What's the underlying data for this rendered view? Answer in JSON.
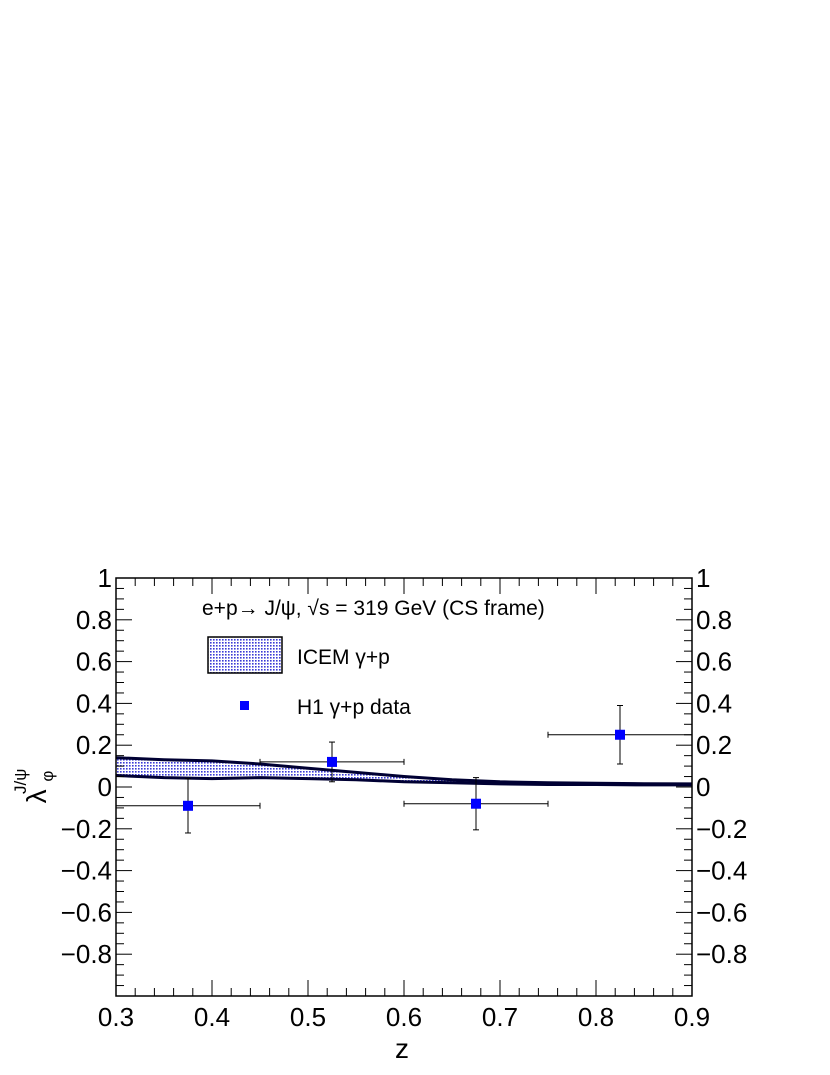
{
  "chart_data": {
    "type": "scatter",
    "title": "e+p→ J/ψ, √s = 319 GeV (CS frame)",
    "xlabel": "z",
    "ylabel_main": "λ",
    "ylabel_sub": "φ",
    "ylabel_sup": "J/ψ",
    "xlim": [
      0.3,
      0.9
    ],
    "ylim": [
      -1,
      1
    ],
    "x_ticks": [
      0.3,
      0.4,
      0.5,
      0.6,
      0.7,
      0.8,
      0.9
    ],
    "x_tick_labels": [
      "0.3",
      "0.4",
      "0.5",
      "0.6",
      "0.7",
      "0.8",
      "0.9"
    ],
    "y_ticks": [
      -0.8,
      -0.6,
      -0.4,
      -0.2,
      0,
      0.2,
      0.4,
      0.6,
      0.8,
      1
    ],
    "y_tick_labels": [
      "−0.8",
      "−0.6",
      "−0.4",
      "−0.2",
      "0",
      "0.2",
      "0.4",
      "0.6",
      "0.8",
      "1"
    ],
    "grid": false,
    "legend": {
      "placement": "top-left",
      "entries": [
        {
          "label": "ICEM γ+p",
          "kind": "band"
        },
        {
          "label": "H1 γ+p data",
          "kind": "marker"
        }
      ]
    },
    "series": [
      {
        "name": "ICEM γ+p",
        "kind": "band",
        "color": "#3b3bd6",
        "x": [
          0.3,
          0.35,
          0.4,
          0.45,
          0.5,
          0.55,
          0.6,
          0.65,
          0.7,
          0.75,
          0.8,
          0.85,
          0.9
        ],
        "upper": [
          0.14,
          0.13,
          0.125,
          0.11,
          0.09,
          0.07,
          0.05,
          0.035,
          0.025,
          0.02,
          0.018,
          0.016,
          0.015
        ],
        "lower": [
          0.055,
          0.045,
          0.04,
          0.045,
          0.04,
          0.035,
          0.025,
          0.02,
          0.015,
          0.012,
          0.012,
          0.01,
          0.01
        ]
      },
      {
        "name": "H1 γ+p data",
        "kind": "points",
        "color": "#0000ff",
        "points": [
          {
            "x": 0.375,
            "y": -0.09,
            "x_low": 0.3,
            "x_high": 0.45,
            "y_err": 0.13
          },
          {
            "x": 0.525,
            "y": 0.12,
            "x_low": 0.45,
            "x_high": 0.6,
            "y_err": 0.095
          },
          {
            "x": 0.675,
            "y": -0.08,
            "x_low": 0.6,
            "x_high": 0.75,
            "y_err": 0.125
          },
          {
            "x": 0.825,
            "y": 0.25,
            "x_low": 0.75,
            "x_high": 0.9,
            "y_err": 0.14
          }
        ]
      }
    ]
  }
}
